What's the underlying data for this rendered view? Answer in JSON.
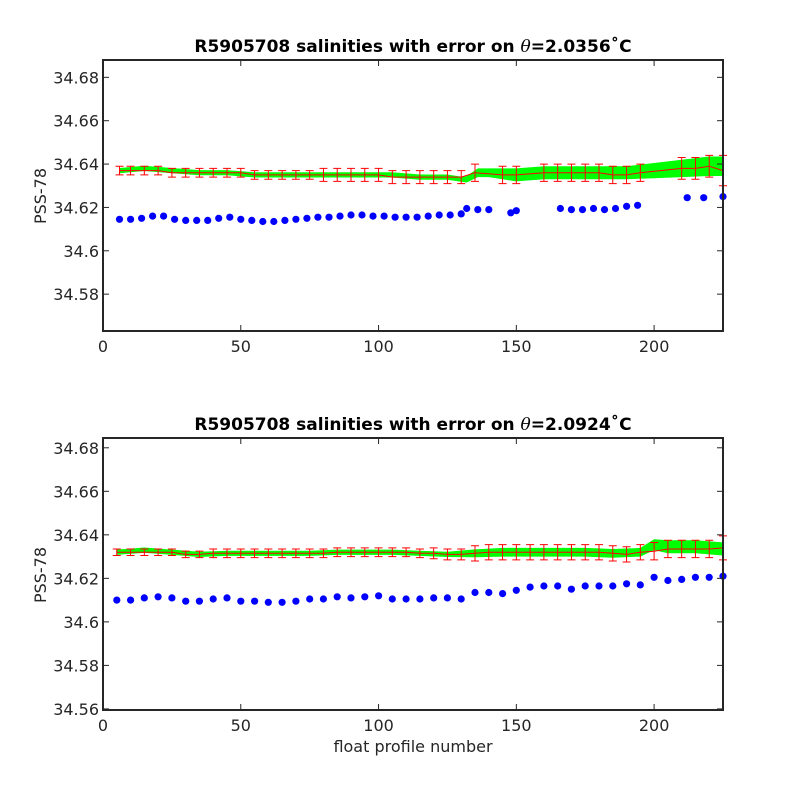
{
  "chart_data": [
    {
      "type": "scatter",
      "title_prefix": "R5905708 salinities with error on ",
      "title_symbol": "θ",
      "title_suffix": "=2.0356˚C",
      "xlabel": "",
      "ylabel": "PSS-78",
      "xlim": [
        0,
        225
      ],
      "ylim": [
        34.563,
        34.688
      ],
      "xticks": [
        0,
        50,
        100,
        150,
        200
      ],
      "xtick_labels": [
        "0",
        "50",
        "100",
        "150",
        "200"
      ],
      "yticks": [
        34.58,
        34.6,
        34.62,
        34.64,
        34.66,
        34.68
      ],
      "ytick_labels": [
        "34.58",
        "34.6",
        "34.62",
        "34.64",
        "34.66",
        "34.68"
      ],
      "grid": false,
      "colors": {
        "raw": "#0000ff",
        "calibrated": "#00ff00",
        "error": "#ff0000"
      },
      "series": [
        {
          "role": "raw",
          "x": [
            6,
            10,
            14,
            18,
            22,
            26,
            30,
            34,
            38,
            42,
            46,
            50,
            54,
            58,
            62,
            66,
            70,
            74,
            78,
            82,
            86,
            90,
            94,
            98,
            102,
            106,
            110,
            114,
            118,
            122,
            126,
            130,
            132,
            136,
            140,
            148,
            150,
            166,
            170,
            174,
            178,
            182,
            186,
            190,
            194,
            212,
            218,
            225
          ],
          "y": [
            34.6145,
            34.6145,
            34.615,
            34.616,
            34.616,
            34.6145,
            34.614,
            34.614,
            34.614,
            34.615,
            34.6155,
            34.6145,
            34.614,
            34.6135,
            34.6135,
            34.614,
            34.6145,
            34.615,
            34.6155,
            34.6155,
            34.616,
            34.6165,
            34.6165,
            34.616,
            34.616,
            34.6155,
            34.6155,
            34.6155,
            34.616,
            34.6165,
            34.6165,
            34.617,
            34.6195,
            34.619,
            34.619,
            34.6175,
            34.6185,
            34.6195,
            34.619,
            34.619,
            34.6195,
            34.619,
            34.6195,
            34.6205,
            34.621,
            34.6245,
            34.6245,
            34.625
          ]
        },
        {
          "role": "calibrated",
          "x": [
            6,
            15,
            25,
            35,
            45,
            55,
            65,
            75,
            85,
            95,
            105,
            115,
            125,
            130,
            132,
            136,
            140,
            150,
            160,
            170,
            180,
            190,
            200,
            210,
            220,
            225
          ],
          "y": [
            34.637,
            34.638,
            34.637,
            34.636,
            34.636,
            34.635,
            34.635,
            34.635,
            34.635,
            34.635,
            34.635,
            34.634,
            34.634,
            34.633,
            34.633,
            34.636,
            34.636,
            34.635,
            34.636,
            34.636,
            34.636,
            34.636,
            34.637,
            34.638,
            34.639,
            34.639
          ],
          "band_half_width": [
            0.0012,
            0.0012,
            0.0012,
            0.0012,
            0.0012,
            0.0012,
            0.0012,
            0.0012,
            0.0012,
            0.0012,
            0.0012,
            0.0012,
            0.0012,
            0.0012,
            0.0015,
            0.002,
            0.002,
            0.003,
            0.003,
            0.003,
            0.003,
            0.003,
            0.0035,
            0.004,
            0.0045,
            0.0045
          ]
        },
        {
          "role": "error",
          "x": [
            6,
            10,
            15,
            20,
            25,
            30,
            35,
            40,
            45,
            50,
            55,
            60,
            65,
            70,
            75,
            80,
            85,
            90,
            95,
            100,
            105,
            110,
            115,
            120,
            125,
            130,
            135,
            145,
            150,
            160,
            165,
            170,
            175,
            180,
            185,
            190,
            195,
            210,
            215,
            220,
            225
          ],
          "y": [
            34.637,
            34.637,
            34.637,
            34.637,
            34.636,
            34.636,
            34.636,
            34.636,
            34.636,
            34.636,
            34.635,
            34.635,
            34.635,
            34.635,
            34.635,
            34.635,
            34.635,
            34.635,
            34.635,
            34.635,
            34.634,
            34.634,
            34.634,
            34.634,
            34.634,
            34.634,
            34.636,
            34.635,
            34.635,
            34.636,
            34.636,
            34.636,
            34.636,
            34.636,
            34.635,
            34.635,
            34.636,
            34.638,
            34.638,
            34.639,
            34.637
          ],
          "err": [
            0.002,
            0.002,
            0.002,
            0.002,
            0.002,
            0.002,
            0.002,
            0.002,
            0.002,
            0.002,
            0.002,
            0.002,
            0.002,
            0.002,
            0.002,
            0.003,
            0.003,
            0.003,
            0.003,
            0.003,
            0.003,
            0.003,
            0.003,
            0.003,
            0.003,
            0.003,
            0.004,
            0.004,
            0.004,
            0.004,
            0.004,
            0.004,
            0.004,
            0.004,
            0.004,
            0.004,
            0.004,
            0.005,
            0.005,
            0.005,
            0.007
          ]
        }
      ]
    },
    {
      "type": "scatter",
      "title_prefix": "R5905708 salinities with error on ",
      "title_symbol": "θ",
      "title_suffix": "=2.0924˚C",
      "xlabel": "float profile number",
      "ylabel": "PSS-78",
      "xlim": [
        0,
        225
      ],
      "ylim": [
        34.5595,
        34.6845
      ],
      "xticks": [
        0,
        50,
        100,
        150,
        200
      ],
      "xtick_labels": [
        "0",
        "50",
        "100",
        "150",
        "200"
      ],
      "yticks": [
        34.56,
        34.58,
        34.6,
        34.62,
        34.64,
        34.66,
        34.68
      ],
      "ytick_labels": [
        "34.56",
        "34.58",
        "34.6",
        "34.62",
        "34.64",
        "34.66",
        "34.68"
      ],
      "grid": false,
      "colors": {
        "raw": "#0000ff",
        "calibrated": "#00ff00",
        "error": "#ff0000"
      },
      "series": [
        {
          "role": "raw",
          "x": [
            5,
            10,
            15,
            20,
            25,
            30,
            35,
            40,
            45,
            50,
            55,
            60,
            65,
            70,
            75,
            80,
            85,
            90,
            95,
            100,
            105,
            110,
            115,
            120,
            125,
            130,
            135,
            140,
            145,
            150,
            155,
            160,
            165,
            170,
            175,
            180,
            185,
            190,
            195,
            200,
            205,
            210,
            215,
            220,
            225
          ],
          "y": [
            34.61,
            34.61,
            34.611,
            34.6115,
            34.611,
            34.6095,
            34.6095,
            34.6105,
            34.611,
            34.6095,
            34.6095,
            34.609,
            34.609,
            34.6095,
            34.6105,
            34.6105,
            34.6115,
            34.611,
            34.6115,
            34.612,
            34.6105,
            34.6105,
            34.6105,
            34.611,
            34.611,
            34.6105,
            34.6135,
            34.6135,
            34.613,
            34.6145,
            34.616,
            34.6165,
            34.6165,
            34.615,
            34.6165,
            34.6165,
            34.6165,
            34.6175,
            34.617,
            34.6205,
            34.619,
            34.6195,
            34.6205,
            34.6205,
            34.621
          ]
        },
        {
          "role": "calibrated",
          "x": [
            5,
            15,
            25,
            35,
            45,
            55,
            65,
            75,
            85,
            95,
            105,
            115,
            125,
            135,
            145,
            155,
            165,
            175,
            185,
            195,
            200,
            205,
            215,
            225
          ],
          "y": [
            34.632,
            34.633,
            34.632,
            34.631,
            34.6315,
            34.6315,
            34.6315,
            34.6315,
            34.632,
            34.632,
            34.632,
            34.6315,
            34.631,
            34.6315,
            34.632,
            34.632,
            34.632,
            34.632,
            34.6315,
            34.632,
            34.6355,
            34.6345,
            34.6345,
            34.6335
          ],
          "band_half_width": [
            0.0012,
            0.0012,
            0.0012,
            0.0012,
            0.0012,
            0.0012,
            0.0012,
            0.0012,
            0.0012,
            0.0012,
            0.0012,
            0.0012,
            0.0012,
            0.0018,
            0.002,
            0.002,
            0.002,
            0.002,
            0.002,
            0.002,
            0.0025,
            0.003,
            0.003,
            0.003
          ]
        },
        {
          "role": "error",
          "x": [
            5,
            10,
            15,
            20,
            25,
            30,
            35,
            40,
            45,
            50,
            55,
            60,
            65,
            70,
            75,
            80,
            85,
            90,
            95,
            100,
            105,
            110,
            115,
            120,
            125,
            130,
            135,
            140,
            145,
            150,
            155,
            160,
            165,
            170,
            175,
            180,
            185,
            190,
            195,
            200,
            205,
            210,
            215,
            220,
            225
          ],
          "y": [
            34.632,
            34.632,
            34.632,
            34.632,
            34.632,
            34.631,
            34.631,
            34.6315,
            34.6315,
            34.6315,
            34.6315,
            34.6315,
            34.6315,
            34.6315,
            34.6315,
            34.6315,
            34.632,
            34.632,
            34.632,
            34.632,
            34.632,
            34.632,
            34.6315,
            34.6315,
            34.631,
            34.631,
            34.6315,
            34.632,
            34.632,
            34.632,
            34.632,
            34.632,
            34.632,
            34.632,
            34.632,
            34.632,
            34.6315,
            34.631,
            34.632,
            34.6325,
            34.6335,
            34.6335,
            34.6335,
            34.6335,
            34.634
          ],
          "err": [
            0.0015,
            0.0015,
            0.0015,
            0.0015,
            0.0015,
            0.0015,
            0.0015,
            0.002,
            0.002,
            0.002,
            0.002,
            0.002,
            0.002,
            0.002,
            0.002,
            0.002,
            0.002,
            0.002,
            0.002,
            0.002,
            0.002,
            0.002,
            0.002,
            0.0025,
            0.0025,
            0.0025,
            0.0035,
            0.0035,
            0.0035,
            0.0035,
            0.0035,
            0.0035,
            0.0035,
            0.0035,
            0.0035,
            0.0035,
            0.0035,
            0.0035,
            0.0035,
            0.004,
            0.004,
            0.004,
            0.004,
            0.004,
            0.0055
          ]
        }
      ]
    }
  ]
}
